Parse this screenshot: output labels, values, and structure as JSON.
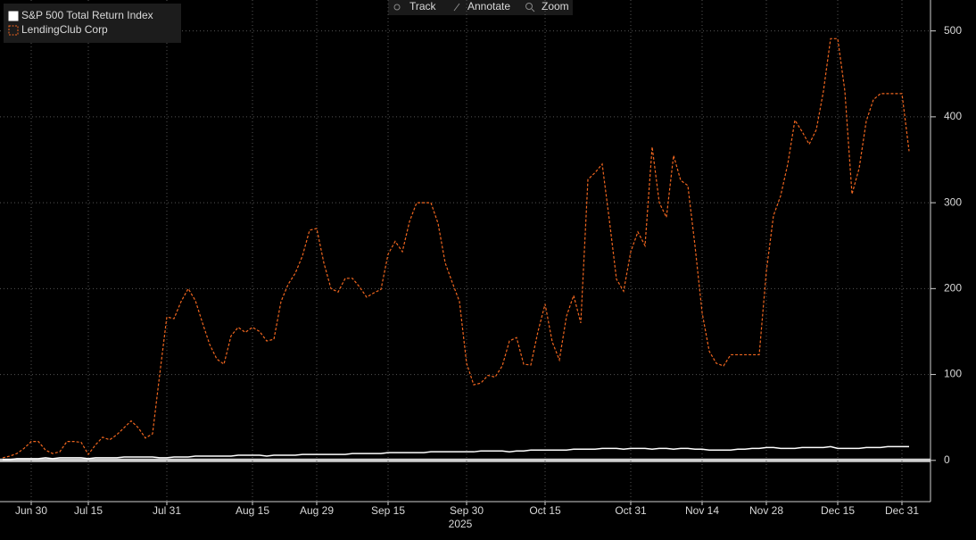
{
  "toolbar": {
    "buttons": [
      "Track",
      "Annotate",
      "Zoom"
    ]
  },
  "chart_data": {
    "type": "line",
    "legend": "upper left",
    "grid": true,
    "x_year_label": "2025",
    "categories": [
      null,
      null,
      null,
      null,
      "Jun 30",
      null,
      null,
      null,
      null,
      null,
      null,
      null,
      "Jul 15",
      null,
      null,
      null,
      null,
      null,
      null,
      null,
      null,
      null,
      null,
      "Jul 31",
      null,
      null,
      null,
      null,
      null,
      null,
      null,
      null,
      null,
      null,
      null,
      "Aug 15",
      null,
      null,
      null,
      null,
      null,
      null,
      null,
      null,
      "Aug 29",
      null,
      null,
      null,
      null,
      null,
      null,
      null,
      null,
      null,
      "Sep 15",
      null,
      null,
      null,
      null,
      null,
      null,
      null,
      null,
      null,
      null,
      "Sep 30",
      null,
      null,
      null,
      null,
      null,
      null,
      null,
      null,
      null,
      null,
      "Oct 15",
      null,
      null,
      null,
      null,
      null,
      null,
      null,
      null,
      null,
      null,
      null,
      "Oct 31",
      null,
      null,
      null,
      null,
      null,
      null,
      null,
      null,
      null,
      "Nov 14",
      null,
      null,
      null,
      null,
      null,
      null,
      null,
      null,
      "Nov 28",
      null,
      null,
      null,
      null,
      null,
      null,
      null,
      null,
      null,
      "Dec 15",
      null,
      null,
      null,
      null,
      null,
      null,
      null,
      null,
      "Dec 31",
      null
    ],
    "series": [
      {
        "name": "S&P 500 Total Return Index",
        "color": "#ffffff",
        "dash": false,
        "values": [
          1,
          1,
          2,
          2,
          2,
          2,
          3,
          2,
          3,
          3,
          3,
          3,
          2,
          3,
          3,
          3,
          3,
          4,
          4,
          4,
          4,
          4,
          3,
          3,
          4,
          4,
          4,
          5,
          5,
          5,
          5,
          5,
          5,
          6,
          6,
          6,
          6,
          5,
          6,
          6,
          6,
          6,
          7,
          7,
          7,
          7,
          7,
          7,
          7,
          8,
          8,
          8,
          8,
          8,
          9,
          9,
          9,
          9,
          9,
          9,
          10,
          10,
          10,
          10,
          10,
          10,
          10,
          11,
          11,
          11,
          11,
          10,
          11,
          11,
          12,
          12,
          12,
          12,
          12,
          12,
          13,
          13,
          13,
          13,
          14,
          14,
          14,
          13,
          14,
          14,
          14,
          13,
          14,
          14,
          13,
          14,
          14,
          13,
          13,
          12,
          12,
          12,
          12,
          13,
          13,
          14,
          14,
          15,
          15,
          14,
          14,
          14,
          15,
          15,
          15,
          15,
          16,
          14,
          14,
          14,
          14,
          15,
          15,
          15,
          16,
          16,
          16,
          16
        ]
      },
      {
        "name": "LendingClub Corp",
        "color": "#f0661f",
        "dash": true,
        "values": [
          3,
          5,
          8,
          14,
          22,
          22,
          12,
          8,
          10,
          22,
          22,
          21,
          7,
          18,
          27,
          24,
          30,
          38,
          46,
          38,
          26,
          31,
          100,
          167,
          165,
          185,
          200,
          186,
          160,
          135,
          118,
          112,
          145,
          155,
          149,
          155,
          150,
          139,
          141,
          185,
          205,
          218,
          238,
          268,
          270,
          230,
          200,
          196,
          212,
          212,
          202,
          190,
          195,
          199,
          240,
          255,
          243,
          278,
          300,
          300,
          300,
          276,
          230,
          207,
          185,
          113,
          88,
          90,
          99,
          97,
          110,
          139,
          143,
          112,
          111,
          150,
          182,
          138,
          117,
          168,
          192,
          160,
          327,
          335,
          345,
          280,
          211,
          197,
          243,
          266,
          250,
          365,
          300,
          283,
          355,
          326,
          320,
          250,
          172,
          127,
          113,
          110,
          123,
          123,
          123,
          123,
          123,
          220,
          285,
          308,
          345,
          396,
          383,
          368,
          385,
          430,
          491,
          491,
          430,
          310,
          340,
          395,
          420,
          427,
          427,
          427,
          427,
          360
        ]
      }
    ],
    "ylim": [
      -48,
      536
    ],
    "yticks": [
      0,
      100,
      200,
      300,
      400,
      500
    ]
  }
}
